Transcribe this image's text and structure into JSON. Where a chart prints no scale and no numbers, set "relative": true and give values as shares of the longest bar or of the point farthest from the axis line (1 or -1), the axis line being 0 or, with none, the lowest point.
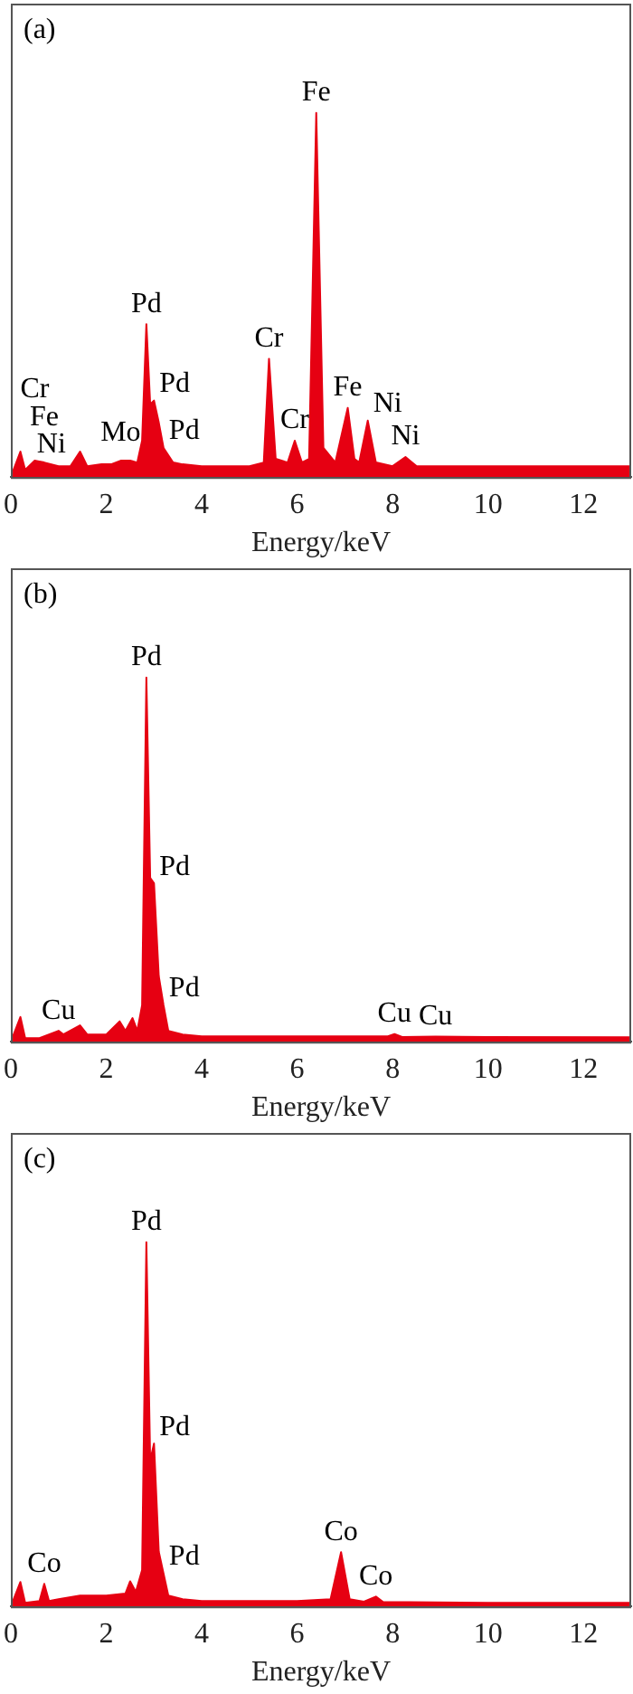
{
  "chart_data": [
    {
      "type": "area",
      "relative": true,
      "xlabel": "Energy/keV",
      "color": "#e60012",
      "xlim": [
        0,
        13
      ],
      "xticks": [
        0,
        2,
        4,
        6,
        8,
        10,
        12
      ],
      "x": [
        0,
        0.2,
        0.3,
        0.5,
        0.7,
        0.85,
        1.0,
        1.25,
        1.45,
        1.6,
        1.9,
        2.1,
        2.3,
        2.5,
        2.65,
        2.75,
        2.84,
        2.92,
        3.0,
        3.1,
        3.2,
        3.4,
        3.6,
        4,
        5,
        5.3,
        5.41,
        5.55,
        5.8,
        5.95,
        6.1,
        6.25,
        6.4,
        6.55,
        6.8,
        7.06,
        7.2,
        7.3,
        7.48,
        7.65,
        8.0,
        8.27,
        8.5,
        9,
        10,
        11,
        12,
        13
      ],
      "values": [
        0,
        0.07,
        0.02,
        0.045,
        0.04,
        0.035,
        0.03,
        0.03,
        0.07,
        0.03,
        0.035,
        0.035,
        0.045,
        0.045,
        0.04,
        0.1,
        0.42,
        0.2,
        0.21,
        0.15,
        0.08,
        0.04,
        0.035,
        0.03,
        0.03,
        0.04,
        0.325,
        0.05,
        0.04,
        0.1,
        0.04,
        0.05,
        1.0,
        0.08,
        0.04,
        0.19,
        0.05,
        0.04,
        0.155,
        0.04,
        0.03,
        0.055,
        0.03,
        0.03,
        0.03,
        0.03,
        0.03,
        0.03
      ],
      "annotations": [
        "(a)",
        {
          "text": "Ni",
          "x": 0.85,
          "y": 0.035
        },
        {
          "text": "Fe",
          "x": 0.7,
          "y": 0.04
        },
        {
          "text": "Cr",
          "x": 0.5,
          "y": 0.045
        },
        {
          "text": "Mo",
          "x": 2.3,
          "y": 0.045
        },
        {
          "text": "Pd",
          "x": 2.84,
          "y": 0.42
        },
        {
          "text": "Pd",
          "x": 3.0,
          "y": 0.21
        },
        {
          "text": "Pd",
          "x": 3.2,
          "y": 0.08
        },
        {
          "text": "Cr",
          "x": 5.41,
          "y": 0.325
        },
        {
          "text": "Cr",
          "x": 5.95,
          "y": 0.1
        },
        {
          "text": "Fe",
          "x": 6.4,
          "y": 1.0
        },
        {
          "text": "Fe",
          "x": 7.06,
          "y": 0.19
        },
        {
          "text": "Ni",
          "x": 7.48,
          "y": 0.155
        },
        {
          "text": "Ni",
          "x": 8.27,
          "y": 0.055
        }
      ]
    },
    {
      "type": "area",
      "relative": true,
      "xlabel": "Energy/keV",
      "color": "#e60012",
      "xlim": [
        0,
        13
      ],
      "xticks": [
        0,
        2,
        4,
        6,
        8,
        10,
        12
      ],
      "x": [
        0,
        0.2,
        0.3,
        0.6,
        1.0,
        1.1,
        1.45,
        1.6,
        2.0,
        2.28,
        2.4,
        2.55,
        2.65,
        2.75,
        2.84,
        2.92,
        3.0,
        3.1,
        3.2,
        3.3,
        3.6,
        4,
        6,
        7.9,
        8.04,
        8.2,
        8.9,
        10,
        13
      ],
      "values": [
        0,
        0.068,
        0.01,
        0.01,
        0.03,
        0.02,
        0.045,
        0.02,
        0.02,
        0.056,
        0.03,
        0.065,
        0.03,
        0.1,
        1.0,
        0.45,
        0.435,
        0.18,
        0.1,
        0.03,
        0.02,
        0.015,
        0.015,
        0.015,
        0.021,
        0.013,
        0.014,
        0.013,
        0.012
      ],
      "annotations": [
        "(b)",
        {
          "text": "Pd",
          "x": 2.84,
          "y": 1.0
        },
        {
          "text": "Pd",
          "x": 3.0,
          "y": 0.435
        },
        {
          "text": "Pd",
          "x": 3.2,
          "y": 0.1
        },
        {
          "text": "Cu",
          "x": 1.0,
          "y": 0.03
        },
        {
          "text": "Cu",
          "x": 8.04,
          "y": 0.021
        },
        {
          "text": "Cu",
          "x": 8.9,
          "y": 0.014
        }
      ]
    },
    {
      "type": "area",
      "relative": true,
      "xlabel": "Energy/keV",
      "color": "#e60012",
      "xlim": [
        0,
        13
      ],
      "xticks": [
        0,
        2,
        4,
        6,
        8,
        10,
        12
      ],
      "x": [
        0,
        0.2,
        0.3,
        0.6,
        0.7,
        0.8,
        1.0,
        1.45,
        2.0,
        2.4,
        2.5,
        2.62,
        2.75,
        2.84,
        2.92,
        3.0,
        3.1,
        3.2,
        3.3,
        3.6,
        4,
        6,
        6.7,
        6.92,
        7.1,
        7.4,
        7.65,
        7.8,
        10,
        13
      ],
      "values": [
        0,
        0.067,
        0.01,
        0.015,
        0.062,
        0.015,
        0.02,
        0.03,
        0.03,
        0.035,
        0.069,
        0.04,
        0.1,
        1.0,
        0.4,
        0.447,
        0.15,
        0.09,
        0.03,
        0.02,
        0.015,
        0.015,
        0.02,
        0.149,
        0.02,
        0.013,
        0.027,
        0.012,
        0.01,
        0.01
      ],
      "annotations": [
        "(c)",
        {
          "text": "Pd",
          "x": 2.84,
          "y": 1.0
        },
        {
          "text": "Pd",
          "x": 3.0,
          "y": 0.447
        },
        {
          "text": "Pd",
          "x": 3.2,
          "y": 0.09
        },
        {
          "text": "Co",
          "x": 0.7,
          "y": 0.062
        },
        {
          "text": "Co",
          "x": 6.92,
          "y": 0.149
        },
        {
          "text": "Co",
          "x": 7.65,
          "y": 0.027
        }
      ]
    }
  ]
}
